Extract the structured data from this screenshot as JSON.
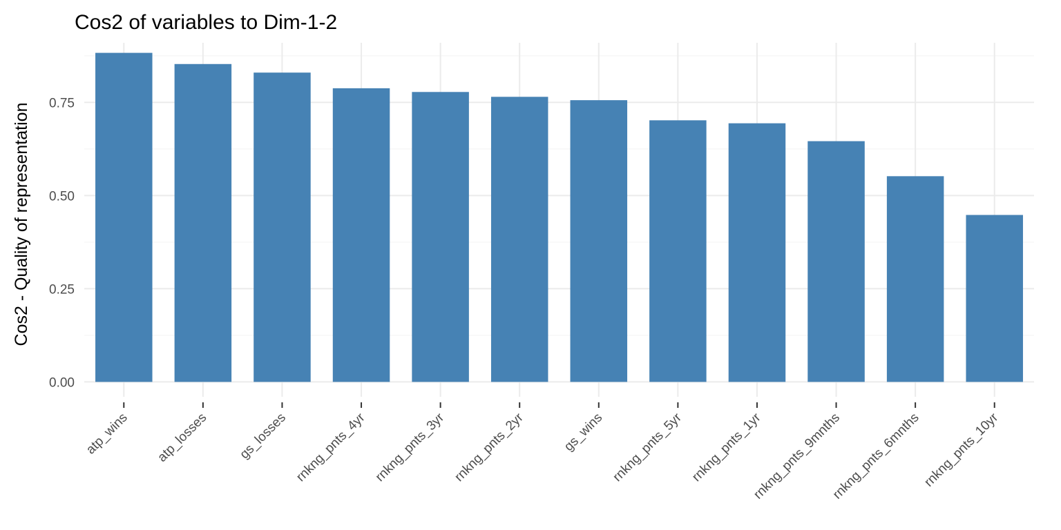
{
  "chart_data": {
    "type": "bar",
    "title": "Cos2 of variables to Dim-1-2",
    "xlabel": "",
    "ylabel": "Cos2 - Quality of representation",
    "categories": [
      "atp_wins",
      "atp_losses",
      "gs_losses",
      "rnkng_pnts_4yr",
      "rnkng_pnts_3yr",
      "rnkng_pnts_2yr",
      "gs_wins",
      "rnkng_pnts_5yr",
      "rnkng_pnts_1yr",
      "rnkng_pnts_9mnths",
      "rnkng_pnts_6mnths",
      "rnkng_pnts_10yr"
    ],
    "values": [
      0.883,
      0.853,
      0.83,
      0.788,
      0.778,
      0.765,
      0.756,
      0.702,
      0.694,
      0.646,
      0.552,
      0.448
    ],
    "ylim": [
      -0.04,
      0.91
    ],
    "yticks": [
      0.0,
      0.25,
      0.5,
      0.75
    ],
    "ytick_labels": [
      "0.00",
      "0.25",
      "0.50",
      "0.75"
    ],
    "grid": true,
    "legend": "none",
    "colors": {
      "bar": "#4682B4",
      "grid_major": "#ebebeb",
      "grid_minor": "#f5f5f5",
      "tick": "#333333"
    }
  }
}
